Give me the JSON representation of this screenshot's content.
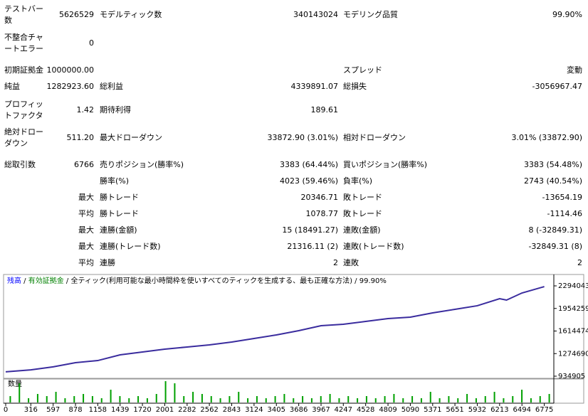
{
  "report": {
    "rows": [
      {
        "l1": "テストバー数",
        "v1": "5626529",
        "l2": "モデルティック数",
        "v2": "340143024",
        "l3": "モデリング品質",
        "v3": "99.90%"
      },
      {
        "l1": "不整合チャートエラー",
        "v1": "0"
      },
      {
        "l1": "初期証拠金",
        "v1": "1000000.00",
        "l3": "スプレッド",
        "v3": "変動"
      },
      {
        "l1": "純益",
        "v1": "1282923.60",
        "l2": "総利益",
        "v2": "4339891.07",
        "l3": "総損失",
        "v3": "-3056967.47"
      },
      {
        "l1": "プロフィットファクタ",
        "v1": "1.42",
        "l2": "期待利得",
        "v2": "189.61"
      },
      {
        "l1": "絶対ドローダウン",
        "v1": "511.20",
        "l2": "最大ドローダウン",
        "v2": "33872.90 (3.01%)",
        "l3": "相対ドローダウン",
        "v3": "3.01% (33872.90)"
      },
      {
        "l1": "総取引数",
        "v1": "6766",
        "l2": "売りポジション(勝率%)",
        "v2": "3383 (64.44%)",
        "l3": "買いポジション(勝率%)",
        "v3": "3383 (54.48%)"
      },
      {
        "l2": "勝率(%)",
        "v2": "4023 (59.46%)",
        "l3": "負率(%)",
        "v3": "2743 (40.54%)"
      },
      {
        "p": "最大",
        "l2": "勝トレード",
        "v2": "20346.71",
        "l3": "敗トレード",
        "v3": "-13654.19"
      },
      {
        "p": "平均",
        "l2": "勝トレード",
        "v2": "1078.77",
        "l3": "敗トレード",
        "v3": "-1114.46"
      },
      {
        "p": "最大",
        "l2": "連勝(金額)",
        "v2": "15 (18491.27)",
        "l3": "連敗(金額)",
        "v3": "8 (-32849.31)"
      },
      {
        "p": "最大",
        "l2": "連勝(トレード数)",
        "v2": "21316.11 (2)",
        "l3": "連敗(トレード数)",
        "v3": "-32849.31 (8)"
      },
      {
        "p": "平均",
        "l2": "連勝",
        "v2": "2",
        "l3": "連敗",
        "v3": "2"
      }
    ]
  },
  "chart_data": {
    "type": "line",
    "legend": [
      {
        "text": "残高",
        "color": "#0000ff"
      },
      {
        "text": "有効証拠金",
        "color": "#008000"
      },
      {
        "text": "全ティック(利用可能な最小時間枠を使いすべてのティックを生成する、最も正確な方法)",
        "color": "#000000"
      },
      {
        "text": "99.90%",
        "color": "#000000"
      }
    ],
    "legend_separator": " / ",
    "x": [
      0,
      316,
      597,
      878,
      1158,
      1439,
      1720,
      2001,
      2282,
      2562,
      2843,
      3124,
      3405,
      3686,
      3967,
      4247,
      4528,
      4809,
      5090,
      5371,
      5651,
      5932,
      6213,
      6300,
      6494,
      6775
    ],
    "series": [
      {
        "color": "#3a2c9e",
        "values": [
          1000000,
          1030000,
          1075000,
          1138000,
          1170000,
          1256000,
          1299000,
          1342000,
          1374000,
          1406000,
          1449000,
          1502000,
          1556000,
          1620000,
          1695000,
          1716000,
          1759000,
          1802000,
          1823000,
          1887000,
          1941000,
          1995000,
          2101000,
          2080000,
          2187000,
          2283000
        ]
      }
    ],
    "xlim": [
      0,
      6895
    ],
    "ylim": [
      934905,
      2443900
    ],
    "xticks": [
      0,
      316,
      597,
      878,
      1158,
      1439,
      1720,
      2001,
      2282,
      2562,
      2843,
      3124,
      3405,
      3686,
      3967,
      4247,
      4528,
      4809,
      5090,
      5371,
      5651,
      5932,
      6213,
      6494,
      6775
    ],
    "yticks": [
      934905,
      1274690,
      1614474,
      1954259,
      2294043
    ],
    "volume": {
      "name": "数量",
      "color": "#00a000",
      "vlim": [
        0,
        10
      ],
      "values": [
        3,
        9,
        2,
        4,
        3,
        5,
        2,
        3,
        4,
        3,
        2,
        6,
        3,
        2,
        3,
        2,
        4,
        10,
        9,
        3,
        5,
        4,
        3,
        2,
        3,
        5,
        2,
        3,
        2,
        3,
        4,
        2,
        3,
        2,
        3,
        4,
        2,
        3,
        2,
        3,
        2,
        3,
        4,
        2,
        3,
        2,
        5,
        2,
        3,
        2,
        4,
        2,
        3,
        5,
        2,
        3,
        6,
        2,
        3,
        4
      ]
    }
  }
}
